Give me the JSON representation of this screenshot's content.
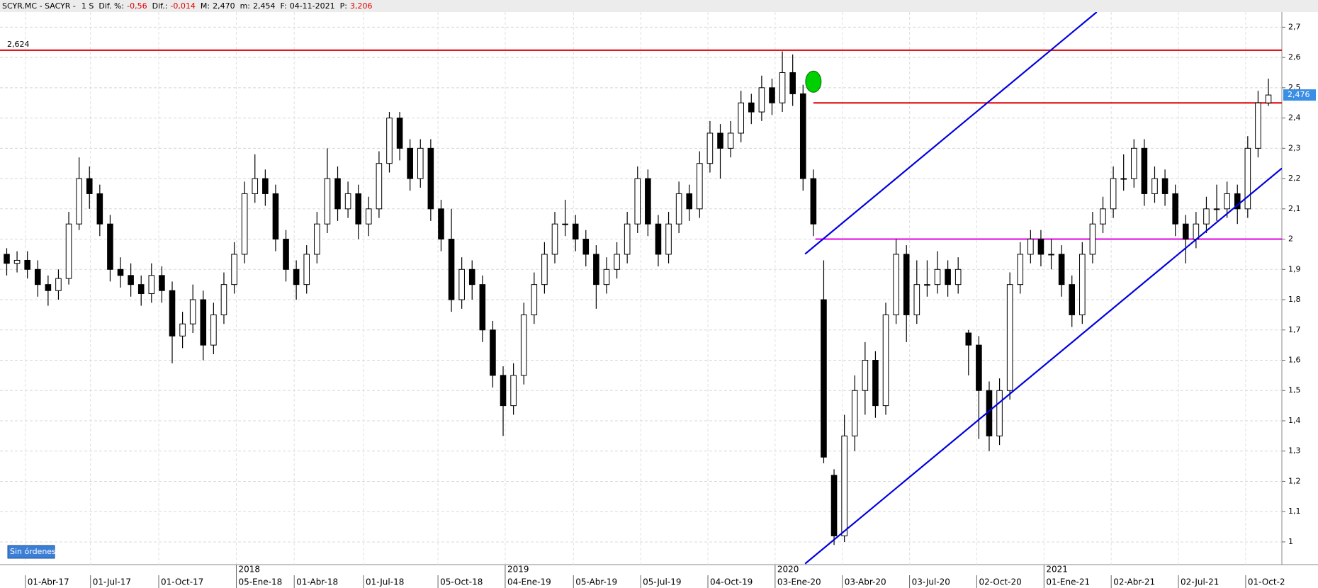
{
  "chart_data": {
    "type": "candlestick",
    "header": {
      "symbol": "SCYR.MC - SACYR -",
      "period": "1 S",
      "fields": [
        {
          "label": "Dif. %:",
          "value": "-0,56",
          "color": "#e00000"
        },
        {
          "label": "Dif.:",
          "value": "-0,014",
          "color": "#e00000"
        },
        {
          "label": "M:",
          "value": "2,470",
          "color": "#000000"
        },
        {
          "label": "m:",
          "value": "2,454",
          "color": "#000000"
        },
        {
          "label": "F:",
          "value": "04-11-2021",
          "color": "#000000"
        },
        {
          "label": "P:",
          "value": "3,206",
          "color": "#e00000"
        }
      ]
    },
    "up_color": "#ffffff",
    "down_color": "#000000",
    "grid": true,
    "xlim": [
      -0.65,
      123.3
    ],
    "ylim": [
      0.925,
      2.75
    ],
    "yticks": [
      1,
      {
        "value": 1.1,
        "label": "1,1"
      },
      {
        "value": 1.2,
        "label": "1,2"
      },
      {
        "value": 1.3,
        "label": "1,3"
      },
      {
        "value": 1.4,
        "label": "1,4"
      },
      {
        "value": 1.5,
        "label": "1,5"
      },
      {
        "value": 1.6,
        "label": "1,6"
      },
      {
        "value": 1.7,
        "label": "1,7"
      },
      {
        "value": 1.8,
        "label": "1,8"
      },
      {
        "value": 1.9,
        "label": "1,9"
      },
      2,
      {
        "value": 2.1,
        "label": "2,1"
      },
      {
        "value": 2.2,
        "label": "2,2"
      },
      {
        "value": 2.3,
        "label": "2,3"
      },
      {
        "value": 2.4,
        "label": "2,4"
      },
      {
        "value": 2.5,
        "label": "2,5"
      },
      {
        "value": 2.6,
        "label": "2,6"
      },
      {
        "value": 2.7,
        "label": "2,7"
      }
    ],
    "xticks": [
      {
        "value": 1.8,
        "label": "01-Abr-17"
      },
      {
        "value": 8.1,
        "label": "01-Jul-17"
      },
      {
        "value": 14.7,
        "label": "01-Oct-17"
      },
      {
        "value": 22.2,
        "label": "05-Ene-18"
      },
      {
        "value": 27.8,
        "label": "01-Abr-18"
      },
      {
        "value": 34.5,
        "label": "01-Jul-18"
      },
      {
        "value": 41.7,
        "label": "05-Oct-18"
      },
      {
        "value": 48.2,
        "label": "04-Ene-19"
      },
      {
        "value": 54.8,
        "label": "05-Abr-19"
      },
      {
        "value": 61.3,
        "label": "05-Jul-19"
      },
      {
        "value": 67.8,
        "label": "04-Oct-19"
      },
      {
        "value": 74.3,
        "label": "03-Ene-20"
      },
      {
        "value": 80.8,
        "label": "03-Abr-20"
      },
      {
        "value": 87.3,
        "label": "03-Jul-20"
      },
      {
        "value": 93.8,
        "label": "02-Oct-20"
      },
      {
        "value": 100.3,
        "label": "01-Ene-21"
      },
      {
        "value": 106.8,
        "label": "02-Abr-21"
      },
      {
        "value": 113.3,
        "label": "02-Jul-21"
      },
      {
        "value": 119.8,
        "label": "01-Oct-2"
      }
    ],
    "year_ticks": [
      {
        "value": 22.2,
        "label": "2018"
      },
      {
        "value": 48.2,
        "label": "2019"
      },
      {
        "value": 74.3,
        "label": "2020"
      },
      {
        "value": 100.3,
        "label": "2021"
      }
    ],
    "last_price": {
      "value": 2.476,
      "label": "2,476"
    },
    "hlines": [
      {
        "y": 2.624,
        "label": "2,624",
        "color": "#e00000"
      },
      {
        "y": 2.45,
        "color": "#e00000",
        "x_start": 78
      },
      {
        "y": 2.0,
        "color": "#e000e0",
        "x_start": 78.2
      }
    ],
    "trendlines": [
      {
        "color": "#0000e0",
        "points": [
          [
            77.2,
            1.951
          ],
          [
            105.4,
            2.75
          ]
        ]
      },
      {
        "color": "#0000e0",
        "points": [
          [
            77.2,
            0.928
          ],
          [
            123.3,
            2.234
          ]
        ]
      }
    ],
    "markers": [
      {
        "x": 78,
        "y": 2.52,
        "color": "#00d000"
      }
    ],
    "candles": [
      [
        1.95,
        1.97,
        1.88,
        1.92
      ],
      [
        1.92,
        1.96,
        1.89,
        1.93
      ],
      [
        1.93,
        1.96,
        1.87,
        1.9
      ],
      [
        1.9,
        1.93,
        1.81,
        1.85
      ],
      [
        1.85,
        1.88,
        1.78,
        1.83
      ],
      [
        1.83,
        1.9,
        1.8,
        1.87
      ],
      [
        1.87,
        2.09,
        1.85,
        2.05
      ],
      [
        2.05,
        2.27,
        2.03,
        2.2
      ],
      [
        2.2,
        2.24,
        2.1,
        2.15
      ],
      [
        2.15,
        2.18,
        2.01,
        2.05
      ],
      [
        2.05,
        2.08,
        1.86,
        1.9
      ],
      [
        1.9,
        1.94,
        1.84,
        1.88
      ],
      [
        1.88,
        1.92,
        1.81,
        1.85
      ],
      [
        1.85,
        1.88,
        1.78,
        1.82
      ],
      [
        1.82,
        1.92,
        1.79,
        1.88
      ],
      [
        1.88,
        1.91,
        1.79,
        1.83
      ],
      [
        1.83,
        1.86,
        1.59,
        1.68
      ],
      [
        1.68,
        1.76,
        1.64,
        1.72
      ],
      [
        1.72,
        1.85,
        1.69,
        1.8
      ],
      [
        1.8,
        1.83,
        1.6,
        1.65
      ],
      [
        1.65,
        1.79,
        1.62,
        1.75
      ],
      [
        1.75,
        1.89,
        1.72,
        1.85
      ],
      [
        1.85,
        1.99,
        1.82,
        1.95
      ],
      [
        1.95,
        2.19,
        1.92,
        2.15
      ],
      [
        2.15,
        2.28,
        2.12,
        2.2
      ],
      [
        2.2,
        2.23,
        2.11,
        2.15
      ],
      [
        2.15,
        2.18,
        1.96,
        2.0
      ],
      [
        2.0,
        2.03,
        1.86,
        1.9
      ],
      [
        1.9,
        1.93,
        1.8,
        1.85
      ],
      [
        1.85,
        1.98,
        1.82,
        1.95
      ],
      [
        1.95,
        2.09,
        1.92,
        2.05
      ],
      [
        2.05,
        2.3,
        2.02,
        2.2
      ],
      [
        2.2,
        2.24,
        2.06,
        2.1
      ],
      [
        2.1,
        2.19,
        2.07,
        2.15
      ],
      [
        2.15,
        2.18,
        2.0,
        2.05
      ],
      [
        2.05,
        2.14,
        2.01,
        2.1
      ],
      [
        2.1,
        2.29,
        2.07,
        2.25
      ],
      [
        2.25,
        2.42,
        2.22,
        2.4
      ],
      [
        2.4,
        2.42,
        2.26,
        2.3
      ],
      [
        2.3,
        2.33,
        2.16,
        2.2
      ],
      [
        2.2,
        2.33,
        2.17,
        2.3
      ],
      [
        2.3,
        2.33,
        2.06,
        2.1
      ],
      [
        2.1,
        2.13,
        1.96,
        2.0
      ],
      [
        2.0,
        2.1,
        1.76,
        1.8
      ],
      [
        1.8,
        1.94,
        1.77,
        1.9
      ],
      [
        1.9,
        1.93,
        1.8,
        1.85
      ],
      [
        1.85,
        1.88,
        1.66,
        1.7
      ],
      [
        1.7,
        1.73,
        1.51,
        1.55
      ],
      [
        1.55,
        1.58,
        1.35,
        1.45
      ],
      [
        1.45,
        1.59,
        1.42,
        1.55
      ],
      [
        1.55,
        1.79,
        1.52,
        1.75
      ],
      [
        1.75,
        1.89,
        1.72,
        1.85
      ],
      [
        1.85,
        1.99,
        1.82,
        1.95
      ],
      [
        1.95,
        2.09,
        1.92,
        2.05
      ],
      [
        2.05,
        2.13,
        2.01,
        2.05
      ],
      [
        2.05,
        2.08,
        1.96,
        2.0
      ],
      [
        2.0,
        2.03,
        1.91,
        1.95
      ],
      [
        1.95,
        1.98,
        1.77,
        1.85
      ],
      [
        1.85,
        1.94,
        1.82,
        1.9
      ],
      [
        1.9,
        1.99,
        1.87,
        1.95
      ],
      [
        1.95,
        2.09,
        1.92,
        2.05
      ],
      [
        2.05,
        2.24,
        2.02,
        2.2
      ],
      [
        2.2,
        2.23,
        2.01,
        2.05
      ],
      [
        2.05,
        2.08,
        1.91,
        1.95
      ],
      [
        1.95,
        2.09,
        1.92,
        2.05
      ],
      [
        2.05,
        2.19,
        2.02,
        2.15
      ],
      [
        2.15,
        2.18,
        2.06,
        2.1
      ],
      [
        2.1,
        2.29,
        2.07,
        2.25
      ],
      [
        2.25,
        2.39,
        2.22,
        2.35
      ],
      [
        2.35,
        2.38,
        2.2,
        2.3
      ],
      [
        2.3,
        2.39,
        2.27,
        2.35
      ],
      [
        2.35,
        2.49,
        2.32,
        2.45
      ],
      [
        2.45,
        2.48,
        2.38,
        2.42
      ],
      [
        2.42,
        2.54,
        2.39,
        2.5
      ],
      [
        2.5,
        2.53,
        2.41,
        2.45
      ],
      [
        2.45,
        2.62,
        2.42,
        2.55
      ],
      [
        2.55,
        2.61,
        2.44,
        2.48
      ],
      [
        2.48,
        2.51,
        2.16,
        2.2
      ],
      [
        2.2,
        2.23,
        2.01,
        2.05
      ],
      [
        1.8,
        1.93,
        1.26,
        1.28
      ],
      [
        1.22,
        1.24,
        0.99,
        1.02
      ],
      [
        1.02,
        1.42,
        1.0,
        1.35
      ],
      [
        1.35,
        1.55,
        1.3,
        1.5
      ],
      [
        1.5,
        1.66,
        1.42,
        1.6
      ],
      [
        1.6,
        1.63,
        1.41,
        1.45
      ],
      [
        1.45,
        1.79,
        1.42,
        1.75
      ],
      [
        1.75,
        2.0,
        1.72,
        1.95
      ],
      [
        1.95,
        1.98,
        1.66,
        1.75
      ],
      [
        1.75,
        1.93,
        1.72,
        1.85
      ],
      [
        1.85,
        1.93,
        1.81,
        1.85
      ],
      [
        1.85,
        1.96,
        1.82,
        1.9
      ],
      [
        1.9,
        1.93,
        1.81,
        1.85
      ],
      [
        1.85,
        1.94,
        1.82,
        1.9
      ],
      [
        1.69,
        1.7,
        1.55,
        1.65
      ],
      [
        1.65,
        1.68,
        1.34,
        1.5
      ],
      [
        1.5,
        1.53,
        1.3,
        1.35
      ],
      [
        1.35,
        1.54,
        1.32,
        1.5
      ],
      [
        1.5,
        1.89,
        1.47,
        1.85
      ],
      [
        1.85,
        1.99,
        1.82,
        1.95
      ],
      [
        1.95,
        2.03,
        1.92,
        2.0
      ],
      [
        2.0,
        2.03,
        1.91,
        1.95
      ],
      [
        1.95,
        2.0,
        1.9,
        1.95
      ],
      [
        1.95,
        1.98,
        1.81,
        1.85
      ],
      [
        1.85,
        1.88,
        1.71,
        1.75
      ],
      [
        1.75,
        1.99,
        1.72,
        1.95
      ],
      [
        1.95,
        2.09,
        1.92,
        2.05
      ],
      [
        2.05,
        2.14,
        2.02,
        2.1
      ],
      [
        2.1,
        2.24,
        2.07,
        2.2
      ],
      [
        2.2,
        2.28,
        2.16,
        2.2
      ],
      [
        2.2,
        2.33,
        2.17,
        2.3
      ],
      [
        2.3,
        2.33,
        2.11,
        2.15
      ],
      [
        2.15,
        2.24,
        2.12,
        2.2
      ],
      [
        2.2,
        2.23,
        2.11,
        2.15
      ],
      [
        2.15,
        2.18,
        2.01,
        2.05
      ],
      [
        2.05,
        2.08,
        1.92,
        2.0
      ],
      [
        2.0,
        2.09,
        1.97,
        2.05
      ],
      [
        2.05,
        2.14,
        2.02,
        2.1
      ],
      [
        2.1,
        2.18,
        2.06,
        2.1
      ],
      [
        2.1,
        2.19,
        2.07,
        2.15
      ],
      [
        2.15,
        2.18,
        2.05,
        2.1
      ],
      [
        2.1,
        2.34,
        2.07,
        2.3
      ],
      [
        2.3,
        2.49,
        2.27,
        2.45
      ],
      [
        2.45,
        2.53,
        2.44,
        2.476
      ]
    ],
    "button": "Sin órdenes"
  }
}
